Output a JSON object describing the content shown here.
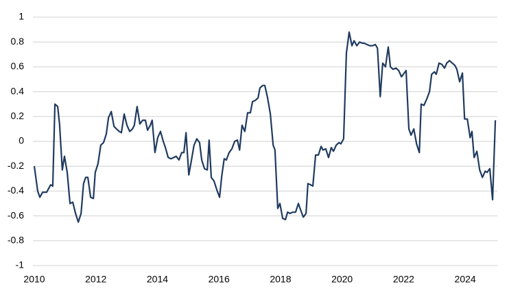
{
  "chart_data": {
    "type": "line",
    "x": [
      2010.0,
      2010.11,
      2010.18,
      2010.27,
      2010.4,
      2010.53,
      2010.6,
      2010.67,
      2010.76,
      2010.82,
      2010.91,
      2010.98,
      2011.07,
      2011.16,
      2011.25,
      2011.34,
      2011.43,
      2011.52,
      2011.6,
      2011.67,
      2011.74,
      2011.83,
      2011.92,
      2011.98,
      2012.07,
      2012.16,
      2012.25,
      2012.34,
      2012.41,
      2012.5,
      2012.59,
      2012.67,
      2012.76,
      2012.83,
      2012.92,
      2013.01,
      2013.1,
      2013.19,
      2013.25,
      2013.34,
      2013.43,
      2013.52,
      2013.61,
      2013.68,
      2013.77,
      2013.83,
      2013.92,
      2014.01,
      2014.1,
      2014.19,
      2014.26,
      2014.35,
      2014.44,
      2014.53,
      2014.61,
      2014.7,
      2014.79,
      2014.86,
      2014.93,
      2015.02,
      2015.1,
      2015.19,
      2015.28,
      2015.37,
      2015.44,
      2015.53,
      2015.62,
      2015.68,
      2015.75,
      2015.84,
      2015.93,
      2016.02,
      2016.09,
      2016.17,
      2016.24,
      2016.33,
      2016.42,
      2016.51,
      2016.6,
      2016.67,
      2016.75,
      2016.84,
      2016.93,
      2017.02,
      2017.09,
      2017.18,
      2017.27,
      2017.33,
      2017.42,
      2017.49,
      2017.58,
      2017.67,
      2017.76,
      2017.82,
      2017.91,
      2017.98,
      2018.07,
      2018.16,
      2018.23,
      2018.31,
      2018.4,
      2018.49,
      2018.58,
      2018.65,
      2018.74,
      2018.83,
      2018.89,
      2018.98,
      2019.05,
      2019.14,
      2019.23,
      2019.32,
      2019.38,
      2019.47,
      2019.56,
      2019.65,
      2019.72,
      2019.81,
      2019.9,
      2019.96,
      2020.05,
      2020.14,
      2020.23,
      2020.32,
      2020.39,
      2020.48,
      2020.57,
      2020.66,
      2020.72,
      2020.81,
      2020.9,
      2020.99,
      2021.08,
      2021.15,
      2021.24,
      2021.32,
      2021.41,
      2021.5,
      2021.57,
      2021.66,
      2021.75,
      2021.84,
      2021.93,
      2021.99,
      2022.08,
      2022.17,
      2022.24,
      2022.33,
      2022.42,
      2022.51,
      2022.57,
      2022.66,
      2022.75,
      2022.84,
      2022.91,
      2023.0,
      2023.06,
      2023.15,
      2023.24,
      2023.33,
      2023.4,
      2023.49,
      2023.58,
      2023.67,
      2023.73,
      2023.82,
      2023.91,
      2023.98,
      2024.07,
      2024.16,
      2024.22,
      2024.29,
      2024.38,
      2024.47,
      2024.56,
      2024.65,
      2024.71,
      2024.8,
      2024.89,
      2024.98
    ],
    "series": [
      {
        "color": "#1f3a5f",
        "values": [
          -0.2,
          -0.4,
          -0.45,
          -0.41,
          -0.41,
          -0.35,
          -0.36,
          0.3,
          0.28,
          0.14,
          -0.23,
          -0.12,
          -0.25,
          -0.5,
          -0.49,
          -0.58,
          -0.65,
          -0.58,
          -0.34,
          -0.29,
          -0.29,
          -0.45,
          -0.46,
          -0.25,
          -0.18,
          -0.03,
          -0.01,
          0.06,
          0.19,
          0.24,
          0.12,
          0.1,
          0.08,
          0.07,
          0.22,
          0.13,
          0.08,
          0.1,
          0.13,
          0.28,
          0.14,
          0.17,
          0.17,
          0.09,
          0.13,
          0.17,
          -0.09,
          0.03,
          0.08,
          0,
          -0.05,
          -0.13,
          -0.14,
          -0.13,
          -0.12,
          -0.15,
          -0.09,
          -0.09,
          0.07,
          -0.27,
          -0.16,
          -0.03,
          0.02,
          -0.01,
          -0.15,
          -0.22,
          -0.23,
          0.01,
          -0.29,
          -0.32,
          -0.39,
          -0.45,
          -0.28,
          -0.14,
          -0.15,
          -0.09,
          -0.06,
          0,
          0.01,
          -0.07,
          0.13,
          0.08,
          0.23,
          0.23,
          0.32,
          0.33,
          0.35,
          0.43,
          0.45,
          0.45,
          0.35,
          0.22,
          -0.03,
          -0.07,
          -0.54,
          -0.5,
          -0.62,
          -0.63,
          -0.57,
          -0.58,
          -0.57,
          -0.57,
          -0.5,
          -0.55,
          -0.61,
          -0.58,
          -0.34,
          -0.35,
          -0.36,
          -0.11,
          -0.11,
          -0.04,
          -0.07,
          -0.06,
          -0.13,
          -0.05,
          -0.08,
          -0.03,
          -0.01,
          -0.02,
          0.02,
          0.71,
          0.88,
          0.77,
          0.81,
          0.77,
          0.8,
          0.79,
          0.79,
          0.78,
          0.77,
          0.77,
          0.78,
          0.75,
          0.36,
          0.63,
          0.6,
          0.76,
          0.6,
          0.58,
          0.59,
          0.57,
          0.52,
          0.54,
          0.57,
          0.1,
          0.05,
          0.1,
          -0.02,
          -0.09,
          0.3,
          0.29,
          0.34,
          0.4,
          0.54,
          0.56,
          0.54,
          0.63,
          0.62,
          0.59,
          0.63,
          0.65,
          0.63,
          0.61,
          0.58,
          0.48,
          0.55,
          0.18,
          0.18,
          0.03,
          0.08,
          -0.13,
          -0.08,
          -0.23,
          -0.29,
          -0.24,
          -0.25,
          -0.22,
          -0.47,
          0.17
        ]
      }
    ],
    "xlim": [
      2010,
      2025
    ],
    "xticks": [
      2010,
      2012,
      2014,
      2016,
      2018,
      2020,
      2022,
      2024
    ],
    "ylim": [
      -1,
      1
    ],
    "yticks": [
      -1,
      -0.8,
      -0.6,
      -0.4,
      -0.2,
      0,
      0.2,
      0.4,
      0.6,
      0.8,
      1
    ],
    "grid": true
  }
}
